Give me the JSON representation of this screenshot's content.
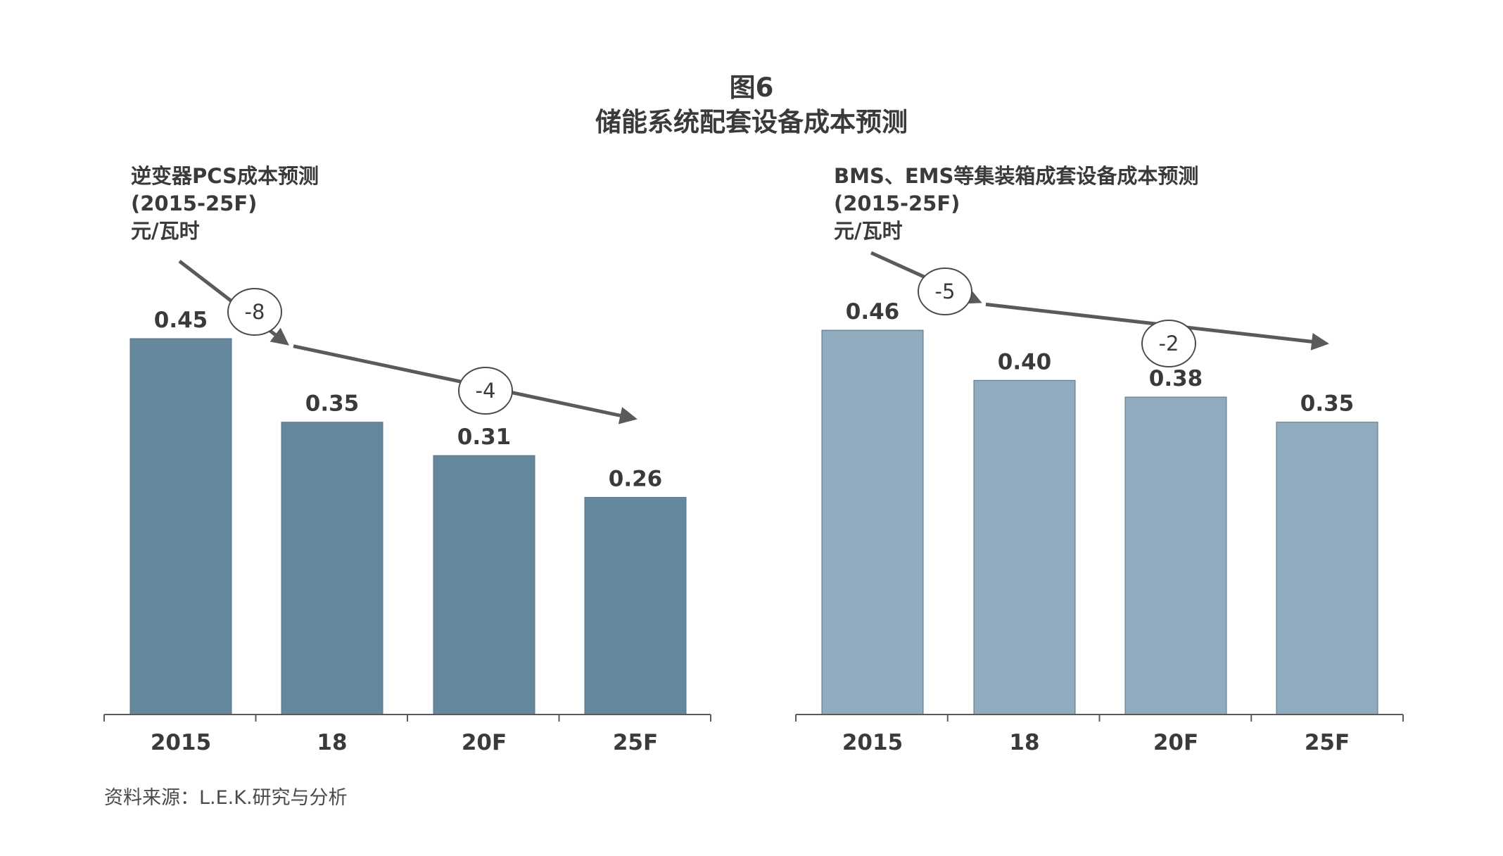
{
  "figure": {
    "label": "图6",
    "title": "储能系统配套设备成本预测"
  },
  "source": "资料来源：L.E.K.研究与分析",
  "chart_data": [
    {
      "type": "bar",
      "title": "逆变器PCS成本预测",
      "subtitle": "(2015-25F)",
      "unit": "元/瓦时",
      "categories": [
        "2015",
        "18",
        "20F",
        "25F"
      ],
      "values": [
        0.45,
        0.35,
        0.31,
        0.26
      ],
      "data_labels": [
        "0.45",
        "0.35",
        "0.31",
        "0.26"
      ],
      "bar_color": "#66889f",
      "ylim": [
        0,
        0.5
      ],
      "grid": false,
      "annotations": [
        {
          "text": "-8",
          "from_category": "2015",
          "to_category": "18"
        },
        {
          "text": "-4",
          "from_category": "18",
          "to_category": "25F"
        }
      ]
    },
    {
      "type": "bar",
      "title": "BMS、EMS等集装箱成套设备成本预测",
      "subtitle": "(2015-25F)",
      "unit": "元/瓦时",
      "categories": [
        "2015",
        "18",
        "20F",
        "25F"
      ],
      "values": [
        0.46,
        0.4,
        0.38,
        0.35
      ],
      "data_labels": [
        "0.46",
        "0.40",
        "0.38",
        "0.35"
      ],
      "bar_color": "#90abbd",
      "ylim": [
        0,
        0.5
      ],
      "grid": false,
      "annotations": [
        {
          "text": "-5",
          "from_category": "2015",
          "to_category": "18"
        },
        {
          "text": "-2",
          "from_category": "18",
          "to_category": "25F"
        }
      ]
    }
  ]
}
